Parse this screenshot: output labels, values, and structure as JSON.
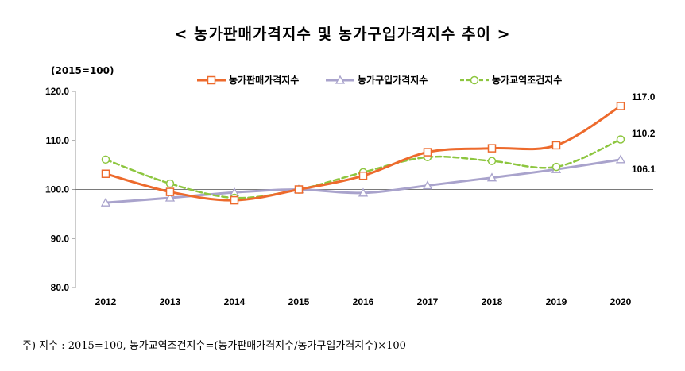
{
  "chart_data": {
    "type": "line",
    "title": "< 농가판매가격지수 및 농가구입가격지수 추이 >",
    "unit_label": "(2015=100)",
    "categories": [
      "2012",
      "2013",
      "2014",
      "2015",
      "2016",
      "2017",
      "2018",
      "2019",
      "2020"
    ],
    "ylim": [
      80,
      120
    ],
    "yticks": [
      "80.0",
      "90.0",
      "100.0",
      "110.0",
      "120.0"
    ],
    "reference_line": 100,
    "legend_position": "top",
    "series": [
      {
        "name": "농가판매가격지수",
        "color": "#ed6a2c",
        "marker": "square",
        "values": [
          103.2,
          99.5,
          97.8,
          100.0,
          102.8,
          107.6,
          108.4,
          109.0,
          117.0
        ],
        "end_label": "117.0"
      },
      {
        "name": "농가구입가격지수",
        "color": "#a9a3cc",
        "marker": "triangle",
        "values": [
          97.3,
          98.3,
          99.4,
          100.0,
          99.3,
          100.8,
          102.4,
          104.1,
          106.1
        ],
        "end_label": "106.1"
      },
      {
        "name": "농가교역조건지수",
        "color": "#8dc63f",
        "marker": "circle",
        "dashed": true,
        "values": [
          106.1,
          101.2,
          98.3,
          100.0,
          103.5,
          106.6,
          105.8,
          104.6,
          110.2
        ],
        "end_label": "110.2"
      }
    ]
  },
  "note": "주) 지수 : 2015=100, 농가교역조건지수=(농가판매가격지수/농가구입가격지수)×100"
}
